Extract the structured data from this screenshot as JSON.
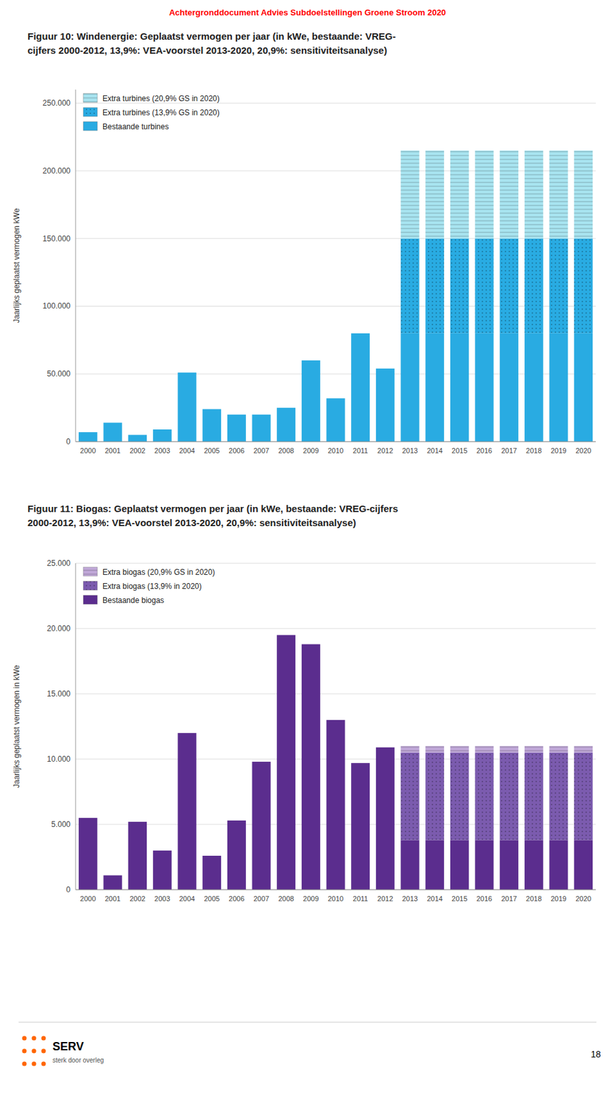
{
  "chart_data": [
    {
      "type": "bar",
      "title": "Figuur 10: Windenergie: Geplaatst vermogen per jaar (in kWe, bestaande: VREG-",
      "subtitle": "cijfers 2000-2012, 13,9%: VEA-voorstel 2013-2020, 20,9%: sensitiviteitsanalyse)",
      "ylabel": "Jaarlijks geplaatst vermogen kWe",
      "categories": [
        "2000",
        "2001",
        "2002",
        "2003",
        "2004",
        "2005",
        "2006",
        "2007",
        "2008",
        "2009",
        "2010",
        "2011",
        "2012",
        "2013",
        "2014",
        "2015",
        "2016",
        "2017",
        "2018",
        "2019",
        "2020"
      ],
      "series": [
        {
          "name": "Bestaande turbines",
          "color": "#29ABE2",
          "values": [
            7000,
            14000,
            5000,
            9000,
            51000,
            24000,
            20000,
            20000,
            25000,
            60000,
            32000,
            80000,
            54000,
            80000,
            80000,
            80000,
            80000,
            80000,
            80000,
            80000,
            80000
          ]
        },
        {
          "name": "Extra turbines (13,9% GS in 2020)",
          "color": "#29ABE2",
          "values": [
            0,
            0,
            0,
            0,
            0,
            0,
            0,
            0,
            0,
            0,
            0,
            0,
            0,
            70000,
            70000,
            70000,
            70000,
            70000,
            70000,
            70000,
            70000
          ]
        },
        {
          "name": "Extra turbines (20,9% GS in 2020)",
          "color": "#A8E4F0",
          "values": [
            0,
            0,
            0,
            0,
            0,
            0,
            0,
            0,
            0,
            0,
            0,
            0,
            0,
            65000,
            65000,
            65000,
            65000,
            65000,
            65000,
            65000,
            65000
          ]
        }
      ],
      "ylim": [
        0,
        260000
      ],
      "yticks": [
        0,
        {
          "value": 50000,
          "label": "50.000"
        },
        {
          "value": 100000,
          "label": "100.000"
        },
        {
          "value": 150000,
          "label": "150.000"
        },
        {
          "value": 200000,
          "label": "200.000"
        },
        {
          "value": 250000,
          "label": "250.000"
        }
      ],
      "stacked": true,
      "grid": true,
      "legend": "upper left",
      "annotations": [
        "Achtergronddocument Advies Subdoelstellingen Groene Stroom 2020"
      ]
    },
    {
      "type": "bar",
      "title": "Figuur 11: Biogas: Geplaatst vermogen per jaar (in kWe, bestaande: VREG-cijfers",
      "subtitle": "2000-2012, 13,9%: VEA-voorstel 2013-2020, 20,9%: sensitiviteitsanalyse)",
      "ylabel": "Jaarlijks geplaatst vermogen in kWe",
      "categories": [
        "2000",
        "2001",
        "2002",
        "2003",
        "2004",
        "2005",
        "2006",
        "2007",
        "2008",
        "2009",
        "2010",
        "2011",
        "2012",
        "2013",
        "2014",
        "2015",
        "2016",
        "2017",
        "2018",
        "2019",
        "2020"
      ],
      "series": [
        {
          "name": "Bestaande biogas",
          "color": "#5B2D8E",
          "values": [
            5500,
            1100,
            5200,
            3000,
            12000,
            2600,
            5300,
            9800,
            19500,
            18800,
            13000,
            9700,
            10900,
            3800,
            3800,
            3800,
            3800,
            3800,
            3800,
            3800,
            3800
          ]
        },
        {
          "name": "Extra biogas (13,9% in 2020)",
          "color": "#7B5BAE",
          "values": [
            0,
            0,
            0,
            0,
            0,
            0,
            0,
            0,
            0,
            0,
            0,
            0,
            0,
            6700,
            6700,
            6700,
            6700,
            6700,
            6700,
            6700,
            6700
          ]
        },
        {
          "name": "Extra biogas (20,9% GS in 2020)",
          "color": "#C0A8D8",
          "values": [
            0,
            0,
            0,
            0,
            0,
            0,
            0,
            0,
            0,
            0,
            0,
            0,
            0,
            500,
            500,
            500,
            500,
            500,
            500,
            500,
            500
          ]
        }
      ],
      "ylim": [
        0,
        25000
      ],
      "yticks": [
        0,
        {
          "value": 5000,
          "label": "5.000"
        },
        {
          "value": 10000,
          "label": "10.000"
        },
        {
          "value": 15000,
          "label": "15.000"
        },
        {
          "value": 20000,
          "label": "20.000"
        },
        {
          "value": 25000,
          "label": "25.000"
        }
      ],
      "stacked": true,
      "grid": true,
      "legend": "upper left",
      "annotations": [
        "SERV",
        "sterk door overleg",
        "18"
      ]
    }
  ]
}
